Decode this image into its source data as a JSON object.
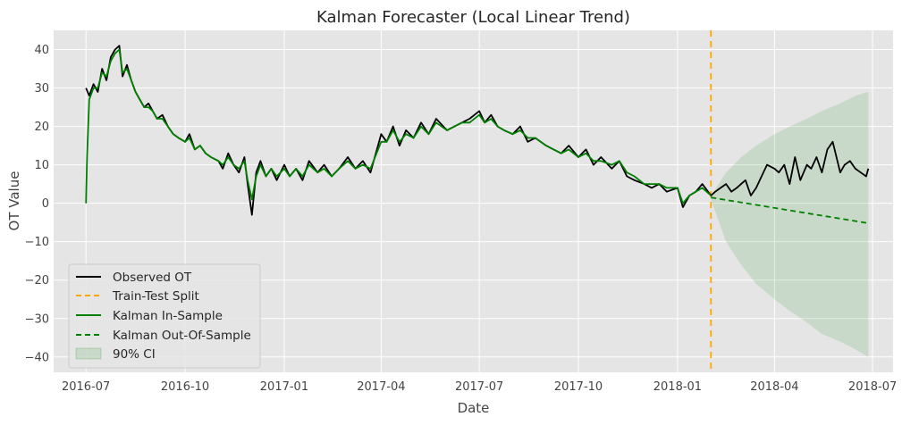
{
  "chart_data": {
    "type": "line",
    "title": "Kalman Forecaster (Local Linear Trend)",
    "xlabel": "Date",
    "ylabel": "OT Value",
    "xlim": [
      "2016-06-01",
      "2018-07-20"
    ],
    "ylim": [
      -44,
      45
    ],
    "x_ticks": [
      "2016-07-01",
      "2016-10-01",
      "2017-01-01",
      "2017-04-01",
      "2017-07-01",
      "2017-10-01",
      "2018-01-01",
      "2018-04-01",
      "2018-07-01"
    ],
    "x_tick_labels": [
      "2016-07",
      "2016-10",
      "2017-01",
      "2017-04",
      "2017-07",
      "2017-10",
      "2018-01",
      "2018-04",
      "2018-07"
    ],
    "y_ticks": [
      -40,
      -30,
      -20,
      -10,
      0,
      10,
      20,
      30,
      40
    ],
    "y_tick_labels": [
      "−40",
      "−30",
      "−20",
      "−10",
      "0",
      "10",
      "20",
      "30",
      "40"
    ],
    "grid": true,
    "legend_position": "lower-left",
    "split_date": "2018-02-01",
    "series": [
      {
        "name": "Observed OT",
        "color": "#000000",
        "style": "solid",
        "x": [
          "2016-07-01",
          "2016-07-04",
          "2016-07-08",
          "2016-07-12",
          "2016-07-16",
          "2016-07-20",
          "2016-07-24",
          "2016-07-28",
          "2016-08-01",
          "2016-08-04",
          "2016-08-08",
          "2016-08-12",
          "2016-08-16",
          "2016-08-20",
          "2016-08-24",
          "2016-08-28",
          "2016-09-01",
          "2016-09-05",
          "2016-09-10",
          "2016-09-15",
          "2016-09-20",
          "2016-09-25",
          "2016-10-01",
          "2016-10-05",
          "2016-10-10",
          "2016-10-15",
          "2016-10-20",
          "2016-10-25",
          "2016-11-01",
          "2016-11-05",
          "2016-11-10",
          "2016-11-15",
          "2016-11-20",
          "2016-11-25",
          "2016-11-28",
          "2016-12-02",
          "2016-12-06",
          "2016-12-10",
          "2016-12-15",
          "2016-12-20",
          "2016-12-25",
          "2017-01-01",
          "2017-01-06",
          "2017-01-12",
          "2017-01-18",
          "2017-01-24",
          "2017-02-01",
          "2017-02-07",
          "2017-02-14",
          "2017-02-21",
          "2017-03-01",
          "2017-03-08",
          "2017-03-15",
          "2017-03-22",
          "2017-04-01",
          "2017-04-06",
          "2017-04-12",
          "2017-04-18",
          "2017-04-24",
          "2017-05-01",
          "2017-05-08",
          "2017-05-15",
          "2017-05-22",
          "2017-06-01",
          "2017-06-08",
          "2017-06-15",
          "2017-06-22",
          "2017-07-01",
          "2017-07-06",
          "2017-07-12",
          "2017-07-18",
          "2017-07-24",
          "2017-08-01",
          "2017-08-08",
          "2017-08-15",
          "2017-08-22",
          "2017-09-01",
          "2017-09-08",
          "2017-09-15",
          "2017-09-22",
          "2017-10-01",
          "2017-10-08",
          "2017-10-15",
          "2017-10-22",
          "2017-11-01",
          "2017-11-08",
          "2017-11-15",
          "2017-11-22",
          "2017-12-01",
          "2017-12-08",
          "2017-12-15",
          "2017-12-22",
          "2018-01-01",
          "2018-01-06",
          "2018-01-12",
          "2018-01-18",
          "2018-01-24",
          "2018-02-01",
          "2018-02-05",
          "2018-02-10",
          "2018-02-15",
          "2018-02-20",
          "2018-02-25",
          "2018-03-01",
          "2018-03-05",
          "2018-03-10",
          "2018-03-15",
          "2018-03-20",
          "2018-03-25",
          "2018-04-01",
          "2018-04-05",
          "2018-04-10",
          "2018-04-15",
          "2018-04-20",
          "2018-04-25",
          "2018-05-01",
          "2018-05-05",
          "2018-05-10",
          "2018-05-15",
          "2018-05-20",
          "2018-05-25",
          "2018-06-01",
          "2018-06-05",
          "2018-06-10",
          "2018-06-15",
          "2018-06-20",
          "2018-06-25",
          "2018-06-27"
        ],
        "y": [
          30,
          28,
          31,
          29,
          35,
          32,
          38,
          40,
          41,
          33,
          36,
          32,
          29,
          27,
          25,
          26,
          24,
          22,
          23,
          20,
          18,
          17,
          16,
          18,
          14,
          15,
          13,
          12,
          11,
          9,
          13,
          10,
          8,
          12,
          5,
          -3,
          8,
          11,
          7,
          9,
          6,
          10,
          7,
          9,
          6,
          11,
          8,
          10,
          7,
          9,
          12,
          9,
          11,
          8,
          18,
          16,
          20,
          15,
          19,
          17,
          21,
          18,
          22,
          19,
          20,
          21,
          22,
          24,
          21,
          23,
          20,
          19,
          18,
          20,
          16,
          17,
          15,
          14,
          13,
          15,
          12,
          14,
          10,
          12,
          9,
          11,
          7,
          6,
          5,
          4,
          5,
          3,
          4,
          -1,
          2,
          3,
          5,
          2,
          3,
          4,
          5,
          3,
          4,
          5,
          6,
          2,
          4,
          7,
          10,
          9,
          8,
          10,
          5,
          12,
          6,
          10,
          9,
          12,
          8,
          14,
          16,
          8,
          10,
          11,
          9,
          8,
          7,
          9
        ]
      },
      {
        "name": "Train-Test Split",
        "color": "#ffa500",
        "style": "dashed"
      },
      {
        "name": "Kalman In-Sample",
        "color": "#008000",
        "style": "solid",
        "x": [
          "2016-07-01",
          "2016-07-02",
          "2016-07-04",
          "2016-07-08",
          "2016-07-12",
          "2016-07-16",
          "2016-07-20",
          "2016-07-24",
          "2016-07-28",
          "2016-08-01",
          "2016-08-04",
          "2016-08-08",
          "2016-08-12",
          "2016-08-16",
          "2016-08-20",
          "2016-08-24",
          "2016-08-28",
          "2016-09-01",
          "2016-09-05",
          "2016-09-10",
          "2016-09-15",
          "2016-09-20",
          "2016-09-25",
          "2016-10-01",
          "2016-10-05",
          "2016-10-10",
          "2016-10-15",
          "2016-10-20",
          "2016-10-25",
          "2016-11-01",
          "2016-11-05",
          "2016-11-10",
          "2016-11-15",
          "2016-11-20",
          "2016-11-25",
          "2016-11-28",
          "2016-12-02",
          "2016-12-06",
          "2016-12-10",
          "2016-12-15",
          "2016-12-20",
          "2016-12-25",
          "2017-01-01",
          "2017-01-06",
          "2017-01-12",
          "2017-01-18",
          "2017-01-24",
          "2017-02-01",
          "2017-02-07",
          "2017-02-14",
          "2017-02-21",
          "2017-03-01",
          "2017-03-08",
          "2017-03-15",
          "2017-03-22",
          "2017-04-01",
          "2017-04-06",
          "2017-04-12",
          "2017-04-18",
          "2017-04-24",
          "2017-05-01",
          "2017-05-08",
          "2017-05-15",
          "2017-05-22",
          "2017-06-01",
          "2017-06-08",
          "2017-06-15",
          "2017-06-22",
          "2017-07-01",
          "2017-07-06",
          "2017-07-12",
          "2017-07-18",
          "2017-07-24",
          "2017-08-01",
          "2017-08-08",
          "2017-08-15",
          "2017-08-22",
          "2017-09-01",
          "2017-09-08",
          "2017-09-15",
          "2017-09-22",
          "2017-10-01",
          "2017-10-08",
          "2017-10-15",
          "2017-10-22",
          "2017-11-01",
          "2017-11-08",
          "2017-11-15",
          "2017-11-22",
          "2017-12-01",
          "2017-12-08",
          "2017-12-15",
          "2017-12-22",
          "2018-01-01",
          "2018-01-06",
          "2018-01-12",
          "2018-01-18",
          "2018-01-24",
          "2018-02-01"
        ],
        "y": [
          0,
          12,
          27,
          30,
          30,
          34,
          33,
          37,
          39,
          40,
          34,
          35,
          32,
          29,
          27,
          25,
          25,
          24,
          22,
          22,
          20,
          18,
          17,
          16,
          17,
          14,
          15,
          13,
          12,
          11,
          10,
          12,
          10,
          9,
          11,
          6,
          1,
          7,
          10,
          7,
          9,
          7,
          9,
          7,
          9,
          7,
          10,
          8,
          9,
          7,
          9,
          11,
          9,
          10,
          9,
          16,
          16,
          19,
          16,
          18,
          17,
          20,
          18,
          21,
          19,
          20,
          21,
          21,
          23,
          21,
          22,
          20,
          19,
          18,
          19,
          17,
          17,
          15,
          14,
          13,
          14,
          12,
          13,
          11,
          11,
          10,
          11,
          8,
          7,
          5,
          5,
          5,
          4,
          4,
          0,
          2,
          3,
          4,
          2
        ]
      },
      {
        "name": "Kalman Out-Of-Sample",
        "color": "#008000",
        "style": "dashed",
        "x": [
          "2018-02-01",
          "2018-06-27"
        ],
        "y": [
          1.5,
          -5.2
        ]
      },
      {
        "name": "90% CI",
        "color": "#008000",
        "style": "fill",
        "x": [
          "2018-02-01",
          "2018-02-15",
          "2018-03-01",
          "2018-03-15",
          "2018-04-01",
          "2018-04-15",
          "2018-05-01",
          "2018-05-15",
          "2018-06-01",
          "2018-06-15",
          "2018-06-27"
        ],
        "upper": [
          2,
          8,
          12,
          15,
          18,
          20,
          22,
          24,
          26,
          28,
          29
        ],
        "lower": [
          1,
          -10,
          -16,
          -21,
          -25,
          -28,
          -31,
          -34,
          -36,
          -38,
          -40
        ]
      }
    ]
  }
}
